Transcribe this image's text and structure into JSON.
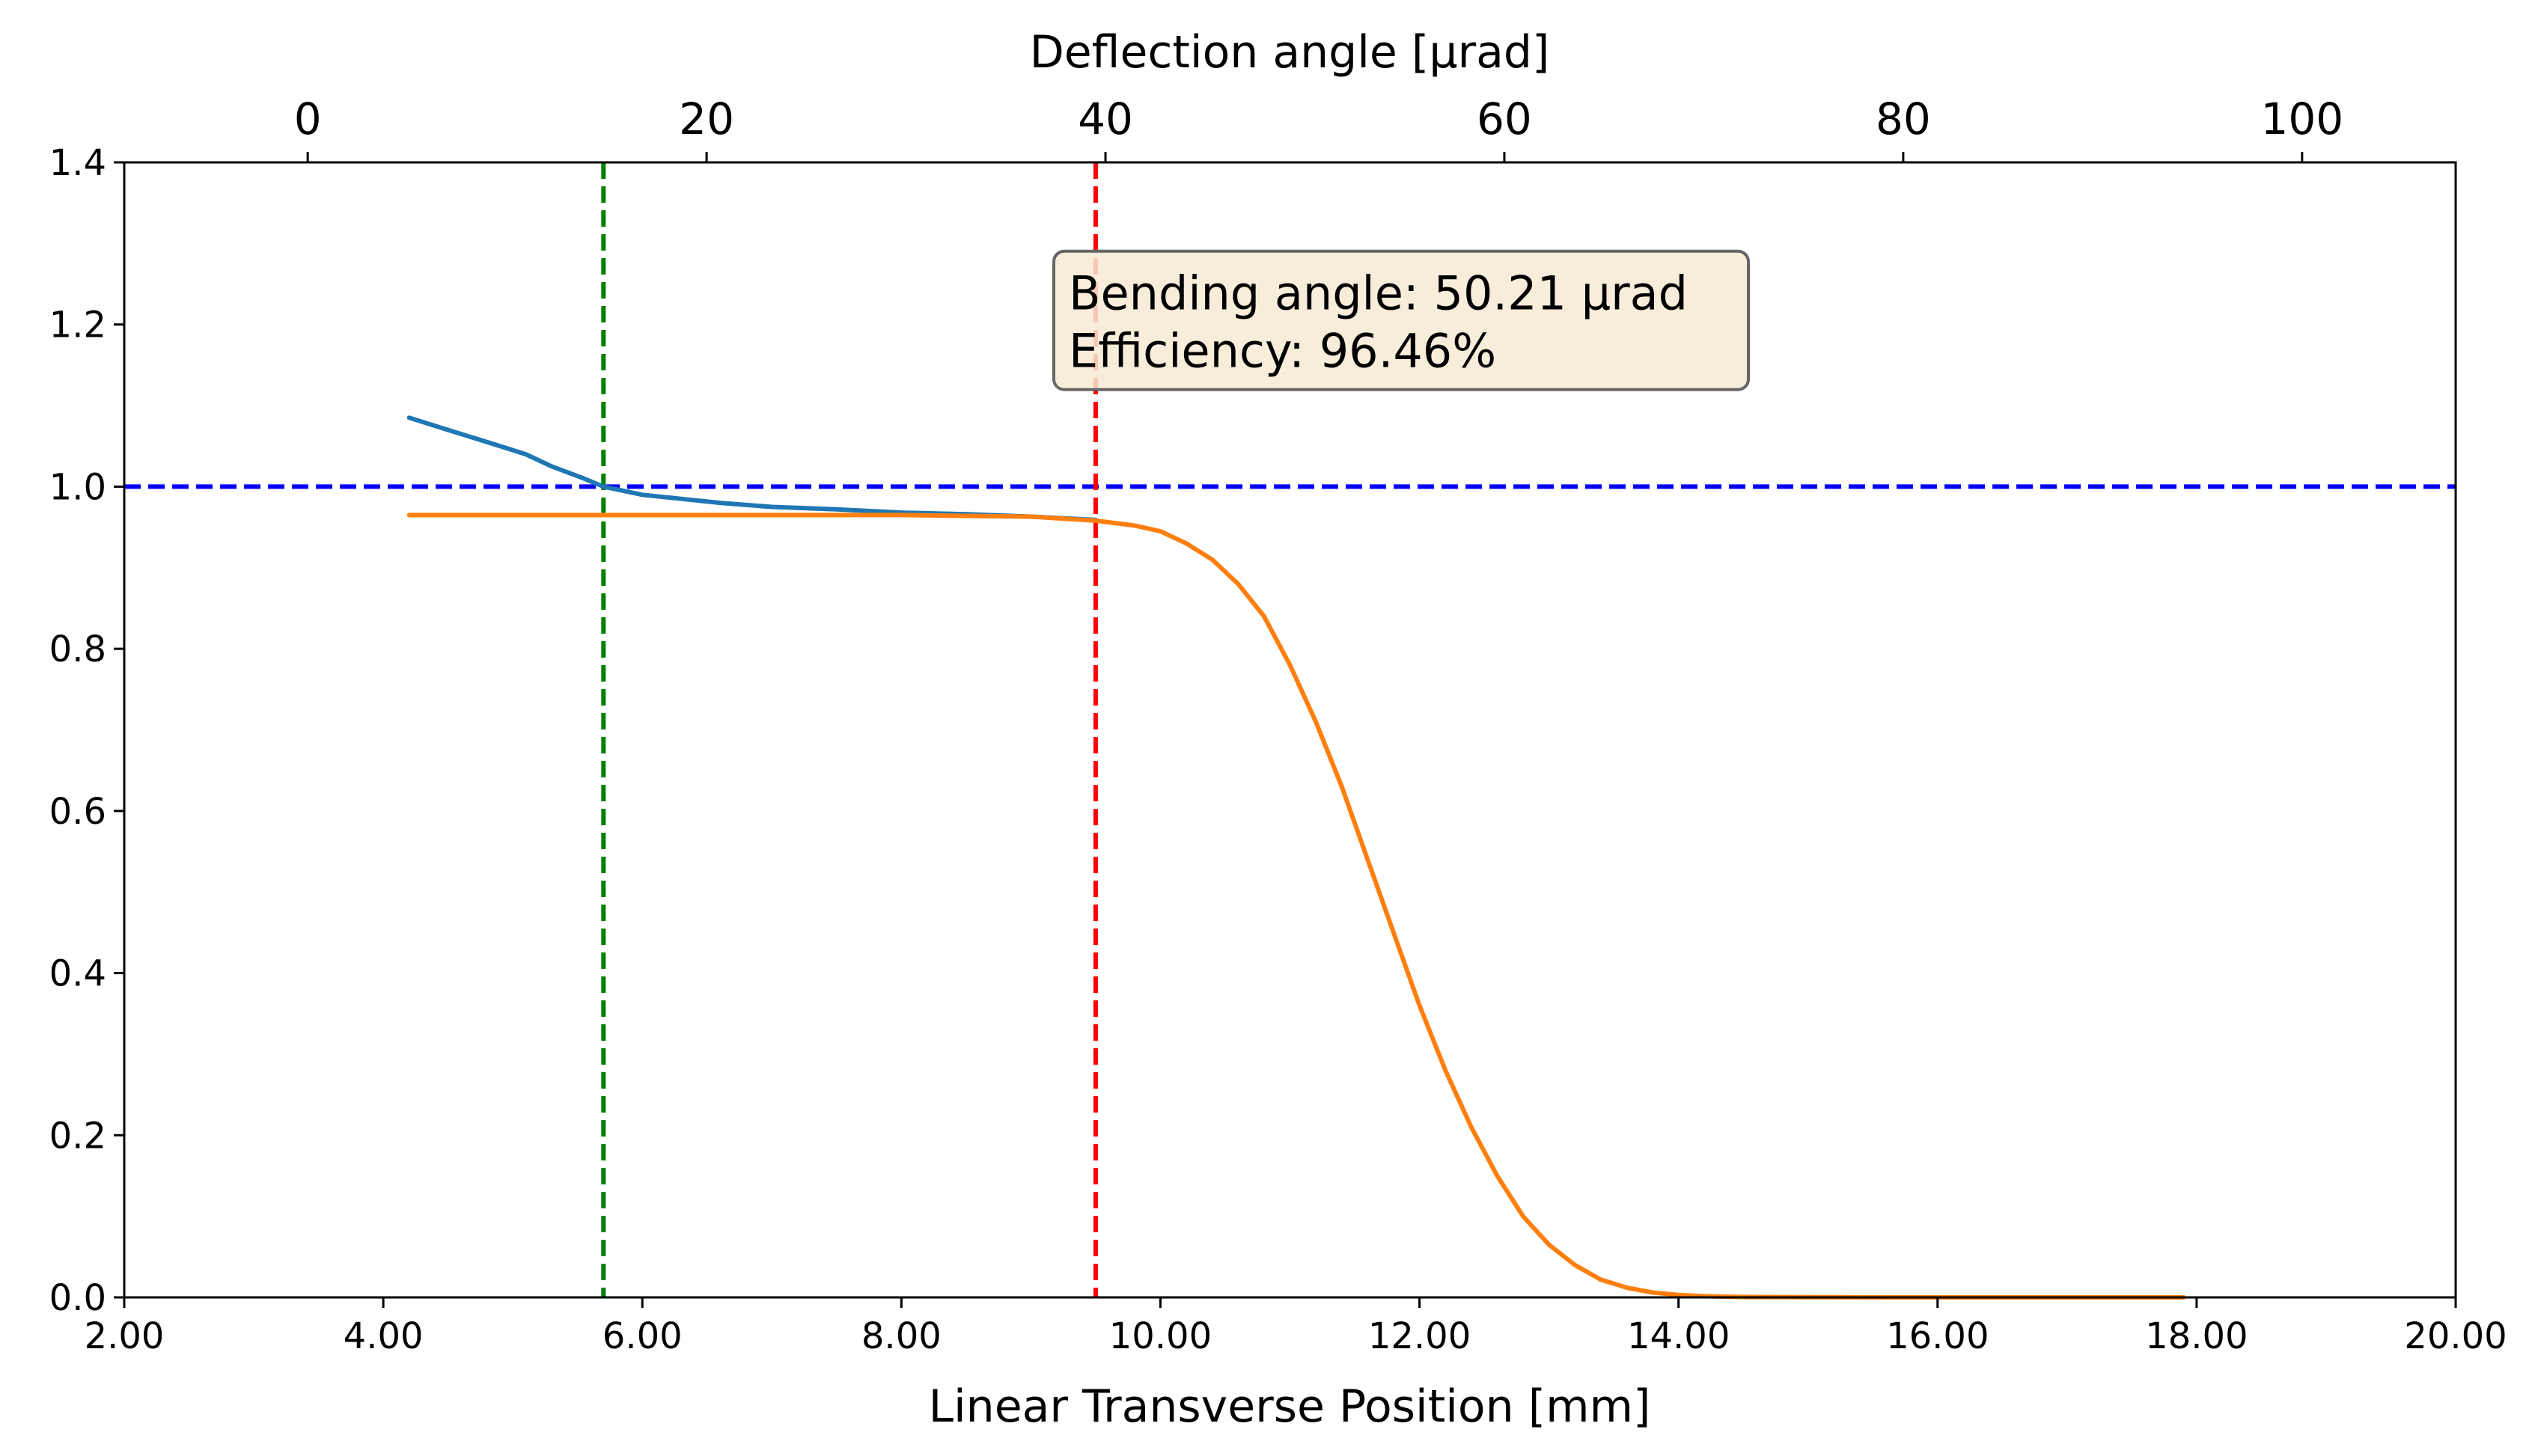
{
  "chart_data": {
    "type": "line",
    "title": "",
    "xlabel": "Linear Transverse Position [mm]",
    "ylabel": "",
    "secondary_xlabel": "Deflection angle [μrad]",
    "xlim": [
      2.0,
      20.0
    ],
    "ylim": [
      0.0,
      1.4
    ],
    "secondary_xlim": [
      -9.2,
      107.7
    ],
    "x_ticks": [
      2.0,
      4.0,
      6.0,
      8.0,
      10.0,
      12.0,
      14.0,
      16.0,
      18.0,
      20.0
    ],
    "x_tick_labels": [
      "2.00",
      "4.00",
      "6.00",
      "8.00",
      "10.00",
      "12.00",
      "14.00",
      "16.00",
      "18.00",
      "20.00"
    ],
    "y_ticks": [
      0.0,
      0.2,
      0.4,
      0.6,
      0.8,
      1.0,
      1.2,
      1.4
    ],
    "y_tick_labels": [
      "0.0",
      "0.2",
      "0.4",
      "0.6",
      "0.8",
      "1.0",
      "1.2",
      "1.4"
    ],
    "secondary_x_ticks": [
      0,
      20,
      40,
      60,
      80,
      100
    ],
    "secondary_x_tick_labels": [
      "0",
      "20",
      "40",
      "60",
      "80",
      "100"
    ],
    "grid": false,
    "legend": "none",
    "series": [
      {
        "color": "#1f77b4",
        "x": [
          4.2,
          4.5,
          4.8,
          5.1,
          5.3,
          5.55,
          5.7,
          5.85,
          6.0,
          6.3,
          6.6,
          7.0,
          7.5,
          8.0,
          8.5,
          9.0,
          9.5
        ],
        "y": [
          1.085,
          1.07,
          1.055,
          1.04,
          1.025,
          1.01,
          1.0,
          0.995,
          0.99,
          0.985,
          0.98,
          0.975,
          0.972,
          0.968,
          0.966,
          0.963,
          0.959
        ]
      },
      {
        "color": "#ff7f0e",
        "x": [
          4.2,
          5.0,
          6.0,
          7.0,
          8.0,
          9.0,
          9.5,
          9.8,
          10.0,
          10.2,
          10.4,
          10.6,
          10.8,
          11.0,
          11.2,
          11.4,
          11.6,
          11.8,
          12.0,
          12.2,
          12.4,
          12.6,
          12.8,
          13.0,
          13.2,
          13.4,
          13.6,
          13.8,
          14.0,
          14.2,
          14.5,
          15.0,
          16.0,
          17.0,
          17.9
        ],
        "y": [
          0.965,
          0.965,
          0.965,
          0.965,
          0.965,
          0.963,
          0.958,
          0.952,
          0.945,
          0.93,
          0.91,
          0.88,
          0.84,
          0.78,
          0.71,
          0.63,
          0.54,
          0.45,
          0.36,
          0.28,
          0.21,
          0.15,
          0.1,
          0.065,
          0.04,
          0.022,
          0.012,
          0.006,
          0.003,
          0.0015,
          0.0005,
          0.0002,
          0.0,
          0.0,
          0.0
        ]
      }
    ],
    "reference_lines": [
      {
        "orientation": "horizontal",
        "value": 1.0,
        "color": "#0000ff",
        "style": "dashed"
      },
      {
        "orientation": "vertical",
        "value": 5.7,
        "color": "#008000",
        "style": "dashed"
      },
      {
        "orientation": "vertical",
        "value": 9.5,
        "color": "#ff0000",
        "style": "dashed"
      }
    ],
    "annotation": {
      "lines": [
        "Bending angle: 50.21 μrad",
        "Efficiency: 96.46%"
      ],
      "background": "#f7ead4",
      "anchor_x": 9.2,
      "anchor_y": 1.2
    }
  }
}
